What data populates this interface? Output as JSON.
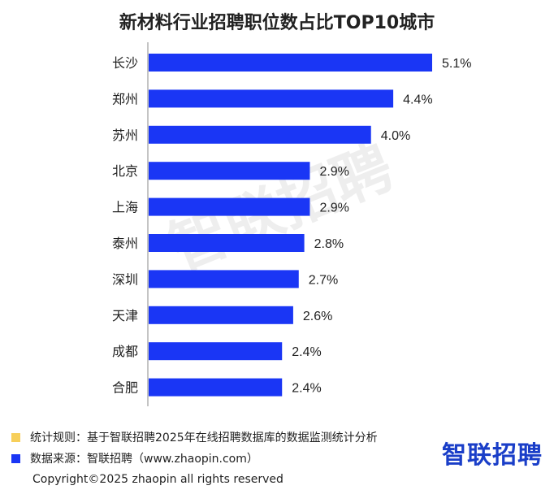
{
  "chart_data": {
    "type": "bar",
    "orientation": "horizontal",
    "title": "新材料行业招聘职位数占比TOP10城市",
    "categories": [
      "长沙",
      "郑州",
      "苏州",
      "北京",
      "上海",
      "泰州",
      "深圳",
      "天津",
      "成都",
      "合肥"
    ],
    "values": [
      5.1,
      4.4,
      4.0,
      2.9,
      2.9,
      2.8,
      2.7,
      2.6,
      2.4,
      2.4
    ],
    "value_labels": [
      "5.1%",
      "4.4%",
      "4.0%",
      "2.9%",
      "2.9%",
      "2.8%",
      "2.7%",
      "2.6%",
      "2.4%",
      "2.4%"
    ],
    "xlim": [
      0,
      5.1
    ],
    "bar_color": "#1a36f5",
    "grid": false
  },
  "footer": {
    "note1_color": "#f7cf5a",
    "note1_text": "统计规则：基于智联招聘2025年在线招聘数据库的数据监测统计分析",
    "note2_color": "#1a36f5",
    "note2_text": "数据来源：智联招聘（www.zhaopin.com）",
    "logo_text": "智联招聘",
    "copyright": "Copyright©2025 zhaopin all rights reserved"
  },
  "watermark": "智联招聘"
}
